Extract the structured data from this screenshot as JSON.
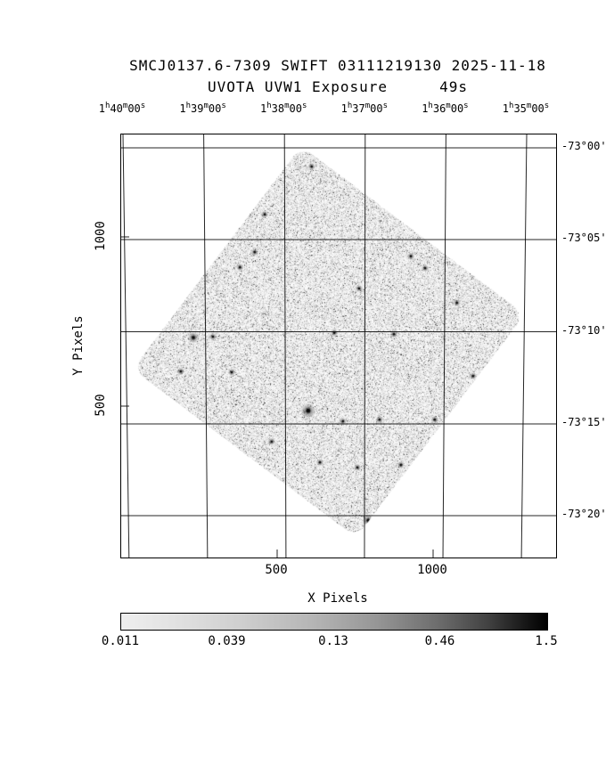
{
  "colors": {
    "background": "#ffffff",
    "foreground": "#000000"
  },
  "title": {
    "line1": "SMCJ0137.6-7309 SWIFT 03111219130 2025-11-18",
    "line2_label": "UVOTA UVW1 Exposure",
    "line2_value": "49s"
  },
  "axes": {
    "x_label": "X Pixels",
    "y_label": "Y Pixels",
    "x_tick_labels": [
      "500",
      "1000"
    ],
    "y_tick_labels": [
      "1000",
      "500"
    ],
    "ra_tick_labels": [
      [
        [
          "1",
          "h"
        ],
        [
          "40",
          "m"
        ],
        [
          "00",
          "s"
        ]
      ],
      [
        [
          "1",
          "h"
        ],
        [
          "39",
          "m"
        ],
        [
          "00",
          "s"
        ]
      ],
      [
        [
          "1",
          "h"
        ],
        [
          "38",
          "m"
        ],
        [
          "00",
          "s"
        ]
      ],
      [
        [
          "1",
          "h"
        ],
        [
          "37",
          "m"
        ],
        [
          "00",
          "s"
        ]
      ],
      [
        [
          "1",
          "h"
        ],
        [
          "36",
          "m"
        ],
        [
          "00",
          "s"
        ]
      ],
      [
        [
          "1",
          "h"
        ],
        [
          "35",
          "m"
        ],
        [
          "00",
          "s"
        ]
      ]
    ],
    "dec_tick_labels": [
      "-73°00'",
      "-73°05'",
      "-73°10'",
      "-73°15'",
      "-73°20'"
    ]
  },
  "colorbar": {
    "tick_labels": [
      "0.011",
      "0.039",
      "0.13",
      "0.46",
      "1.5"
    ]
  },
  "chart_data": {
    "type": "heatmap",
    "title": "SMCJ0137.6-7309 SWIFT 03111219130 2025-11-18",
    "subtitle": "UVOTA UVW1 Exposure 49s",
    "instrument_mode": "UVOTA UVW1",
    "exposure_seconds": 49,
    "xlabel": "X Pixels",
    "ylabel": "Y Pixels",
    "x_tick_values": [
      500,
      1000
    ],
    "y_tick_values": [
      1000,
      500
    ],
    "ra_ticks": [
      "1h40m00s",
      "1h39m00s",
      "1h38m00s",
      "1h37m00s",
      "1h36m00s",
      "1h35m00s"
    ],
    "dec_ticks": [
      "-73°00'",
      "-73°05'",
      "-73°10'",
      "-73°15'",
      "-73°20'"
    ],
    "colorbar_ticks": [
      0.011,
      0.039,
      0.13,
      0.46,
      1.5
    ],
    "footprint": {
      "shape": "rotated-square",
      "rotation_deg": 8,
      "center_frac": [
        0.477,
        0.49
      ],
      "half_diagonal_frac": 0.455
    },
    "stars": [
      [
        0.438,
        0.076,
        2
      ],
      [
        0.551,
        0.069,
        2
      ],
      [
        0.33,
        0.189,
        2
      ],
      [
        0.676,
        0.183,
        2
      ],
      [
        0.715,
        0.238,
        2
      ],
      [
        0.816,
        0.326,
        2
      ],
      [
        0.666,
        0.288,
        2
      ],
      [
        0.547,
        0.364,
        2
      ],
      [
        0.307,
        0.278,
        2
      ],
      [
        0.273,
        0.314,
        2
      ],
      [
        0.166,
        0.48,
        3
      ],
      [
        0.211,
        0.478,
        2
      ],
      [
        0.137,
        0.56,
        2
      ],
      [
        0.254,
        0.562,
        2
      ],
      [
        0.49,
        0.469,
        2
      ],
      [
        0.627,
        0.472,
        2
      ],
      [
        0.809,
        0.571,
        2
      ],
      [
        0.842,
        0.611,
        2
      ],
      [
        0.43,
        0.653,
        4
      ],
      [
        0.51,
        0.678,
        2
      ],
      [
        0.594,
        0.674,
        2
      ],
      [
        0.346,
        0.726,
        2
      ],
      [
        0.457,
        0.775,
        2
      ],
      [
        0.543,
        0.787,
        2
      ],
      [
        0.568,
        0.912,
        3
      ],
      [
        0.721,
        0.674,
        2
      ],
      [
        0.758,
        0.676,
        2
      ],
      [
        0.643,
        0.781,
        2
      ],
      [
        0.699,
        0.316,
        2
      ],
      [
        0.772,
        0.398,
        2
      ]
    ]
  }
}
